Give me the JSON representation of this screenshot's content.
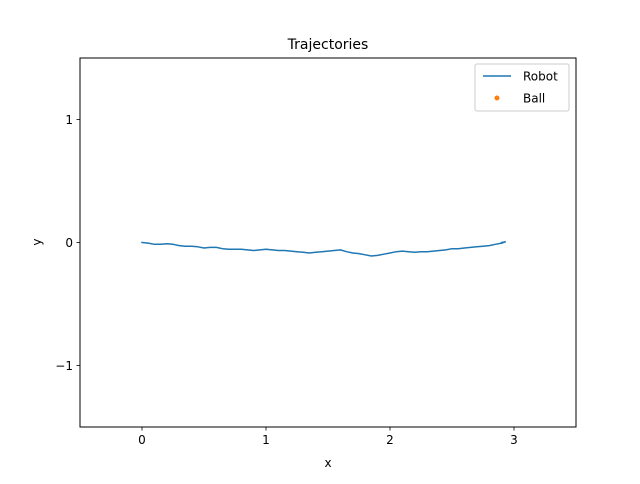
{
  "chart_data": {
    "type": "line",
    "title": "Trajectories",
    "xlabel": "x",
    "ylabel": "y",
    "xlim": [
      -0.5,
      3.5
    ],
    "ylim": [
      -1.5,
      1.5
    ],
    "xticks": [
      0,
      1,
      2,
      3
    ],
    "yticks": [
      -1,
      0,
      1
    ],
    "xtick_labels": [
      "0",
      "1",
      "2",
      "3"
    ],
    "ytick_labels": [
      "−1",
      "0",
      "1"
    ],
    "grid": false,
    "legend_position": "top-right",
    "series": [
      {
        "name": "Robot",
        "kind": "line",
        "color": "#1f77b4",
        "x": [
          0.0,
          0.05,
          0.1,
          0.15,
          0.2,
          0.25,
          0.3,
          0.35,
          0.4,
          0.45,
          0.5,
          0.55,
          0.6,
          0.65,
          0.7,
          0.75,
          0.8,
          0.85,
          0.9,
          0.95,
          1.0,
          1.05,
          1.1,
          1.15,
          1.2,
          1.25,
          1.3,
          1.35,
          1.4,
          1.45,
          1.5,
          1.55,
          1.6,
          1.65,
          1.7,
          1.75,
          1.8,
          1.85,
          1.9,
          1.95,
          2.0,
          2.05,
          2.1,
          2.15,
          2.2,
          2.25,
          2.3,
          2.35,
          2.4,
          2.45,
          2.5,
          2.55,
          2.6,
          2.65,
          2.7,
          2.75,
          2.8,
          2.85,
          2.9,
          2.93,
          2.9
        ],
        "y": [
          0.0,
          -0.005,
          -0.015,
          -0.015,
          -0.01,
          -0.015,
          -0.025,
          -0.03,
          -0.03,
          -0.035,
          -0.045,
          -0.04,
          -0.04,
          -0.05,
          -0.055,
          -0.055,
          -0.055,
          -0.06,
          -0.065,
          -0.06,
          -0.055,
          -0.06,
          -0.065,
          -0.065,
          -0.07,
          -0.075,
          -0.08,
          -0.085,
          -0.08,
          -0.075,
          -0.07,
          -0.065,
          -0.06,
          -0.075,
          -0.085,
          -0.09,
          -0.1,
          -0.11,
          -0.105,
          -0.095,
          -0.085,
          -0.075,
          -0.07,
          -0.075,
          -0.08,
          -0.075,
          -0.075,
          -0.07,
          -0.065,
          -0.06,
          -0.05,
          -0.05,
          -0.045,
          -0.04,
          -0.035,
          -0.03,
          -0.025,
          -0.015,
          -0.005,
          0.005,
          0.0
        ]
      },
      {
        "name": "Ball",
        "kind": "scatter",
        "color": "#ff7f0e",
        "x": [],
        "y": []
      }
    ]
  }
}
